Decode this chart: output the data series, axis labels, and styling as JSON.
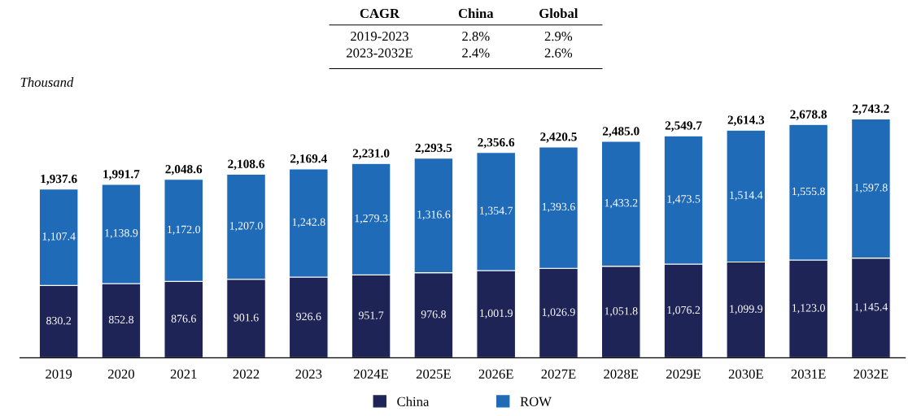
{
  "chart_data": {
    "type": "bar",
    "stacked": true,
    "ylabel": "Thousand",
    "categories": [
      "2019",
      "2020",
      "2021",
      "2022",
      "2023",
      "2024E",
      "2025E",
      "2026E",
      "2027E",
      "2028E",
      "2029E",
      "2030E",
      "2031E",
      "2032E"
    ],
    "series": [
      {
        "name": "China",
        "color": "#1f2456",
        "values": [
          830.2,
          852.8,
          876.6,
          901.6,
          926.6,
          951.7,
          976.8,
          1001.9,
          1026.9,
          1051.8,
          1076.2,
          1099.9,
          1123.0,
          1145.4
        ],
        "value_labels": [
          "830.2",
          "852.8",
          "876.6",
          "901.6",
          "926.6",
          "951.7",
          "976.8",
          "1,001.9",
          "1,026.9",
          "1,051.8",
          "1,076.2",
          "1,099.9",
          "1,123.0",
          "1,145.4"
        ]
      },
      {
        "name": "ROW",
        "color": "#1f6bb8",
        "values": [
          1107.4,
          1138.9,
          1172.0,
          1207.0,
          1242.8,
          1279.3,
          1316.6,
          1354.7,
          1393.6,
          1433.2,
          1473.5,
          1514.4,
          1555.8,
          1597.8
        ],
        "value_labels": [
          "1,107.4",
          "1,138.9",
          "1,172.0",
          "1,207.0",
          "1,242.8",
          "1,279.3",
          "1,316.6",
          "1,354.7",
          "1,393.6",
          "1,433.2",
          "1,473.5",
          "1,514.4",
          "1,555.8",
          "1,597.8"
        ]
      }
    ],
    "totals": [
      "1,937.6",
      "1,991.7",
      "2,048.6",
      "2,108.6",
      "2,169.4",
      "2,231.0",
      "2,293.5",
      "2,356.6",
      "2,420.5",
      "2,485.0",
      "2,549.7",
      "2,614.3",
      "2,678.8",
      "2,743.2"
    ],
    "annotations": [
      "CAGR",
      "China",
      "Global",
      "2019-2023",
      "2.8%",
      "2.9%",
      "2023-2032E",
      "2.4%",
      "2.6%"
    ],
    "legend": "bottom",
    "grid": false
  }
}
